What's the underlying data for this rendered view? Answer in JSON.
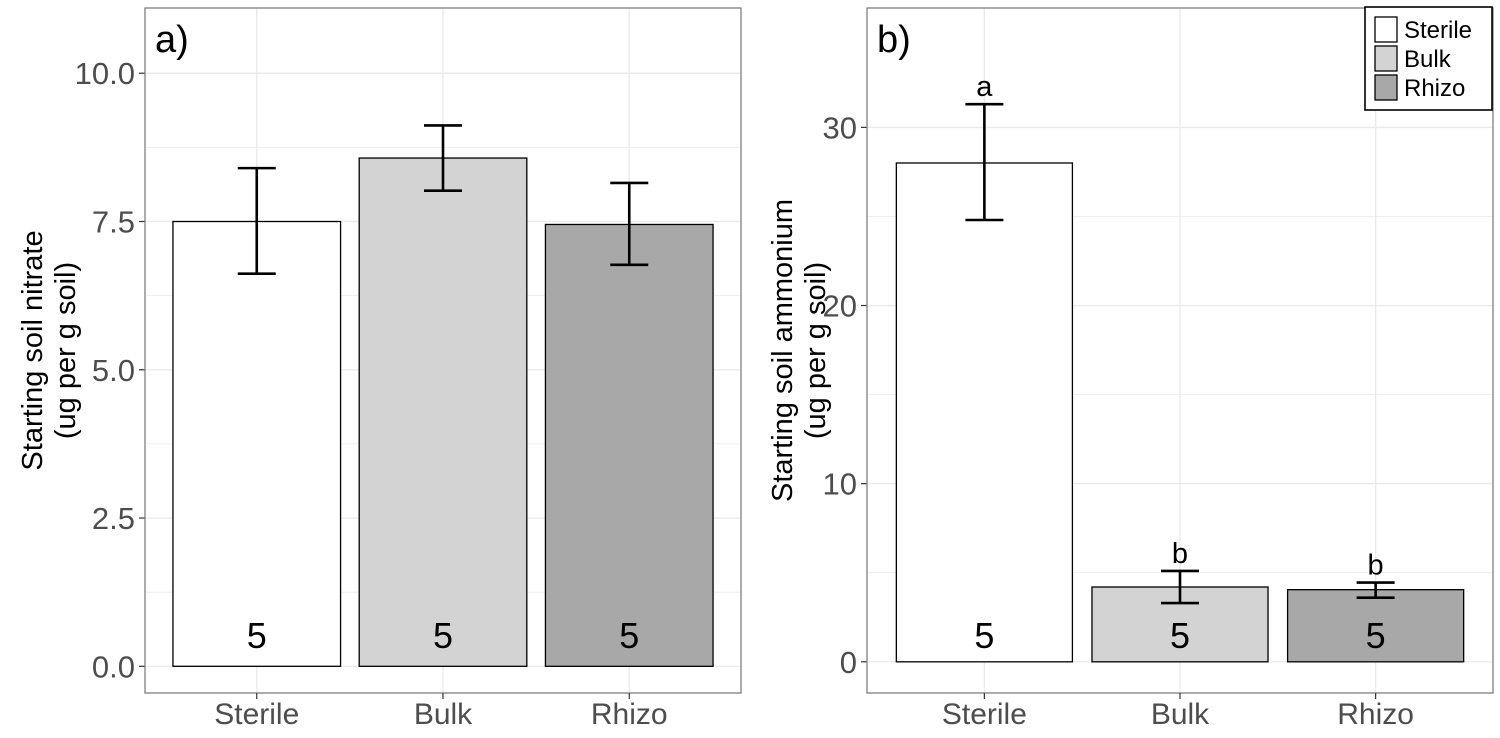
{
  "chart_data": [
    {
      "type": "bar",
      "panel_label": "a)",
      "categories": [
        "Sterile",
        "Bulk",
        "Rhizo"
      ],
      "values": [
        7.5,
        8.57,
        7.45
      ],
      "error_low": [
        6.62,
        8.02,
        6.77
      ],
      "error_high": [
        8.4,
        9.12,
        8.15
      ],
      "n_labels": [
        "5",
        "5",
        "5"
      ],
      "significance_letters": [
        "",
        "",
        ""
      ],
      "ylabel_line1": "Starting soil nitrate",
      "ylabel_line2": "(ug per g soil)",
      "xlabel": "",
      "ylim": [
        -0.45,
        11.1
      ],
      "yticks": [
        0.0,
        2.5,
        5.0,
        7.5,
        10.0
      ],
      "ytick_labels": [
        "0.0",
        "2.5",
        "5.0",
        "7.5",
        "10.0"
      ],
      "grid": true,
      "legend": false
    },
    {
      "type": "bar",
      "panel_label": "b)",
      "categories": [
        "Sterile",
        "Bulk",
        "Rhizo"
      ],
      "values": [
        28.0,
        4.2,
        4.05
      ],
      "error_low": [
        24.8,
        3.3,
        3.6
      ],
      "error_high": [
        31.3,
        5.1,
        4.45
      ],
      "n_labels": [
        "5",
        "5",
        "5"
      ],
      "significance_letters": [
        "a",
        "b",
        "b"
      ],
      "ylabel_line1": "Starting soil ammonium",
      "ylabel_line2": "(ug per g soil)",
      "xlabel": "",
      "ylim": [
        -1.75,
        36.7
      ],
      "yticks": [
        0,
        10,
        20,
        30
      ],
      "ytick_labels": [
        "0",
        "10",
        "20",
        "30"
      ],
      "grid": true,
      "legend": true,
      "legend_position": "top-right"
    }
  ],
  "legend": {
    "items": [
      {
        "label": "Sterile",
        "color": "#ffffff"
      },
      {
        "label": "Bulk",
        "color": "#d3d3d3"
      },
      {
        "label": "Rhizo",
        "color": "#a8a8a8"
      }
    ]
  },
  "colors": {
    "Sterile": "#ffffff",
    "Bulk": "#d3d3d3",
    "Rhizo": "#a8a8a8",
    "grid": "#ebebeb",
    "axis_text": "#4d4d4d",
    "panel_border": "#7f7f7f"
  }
}
